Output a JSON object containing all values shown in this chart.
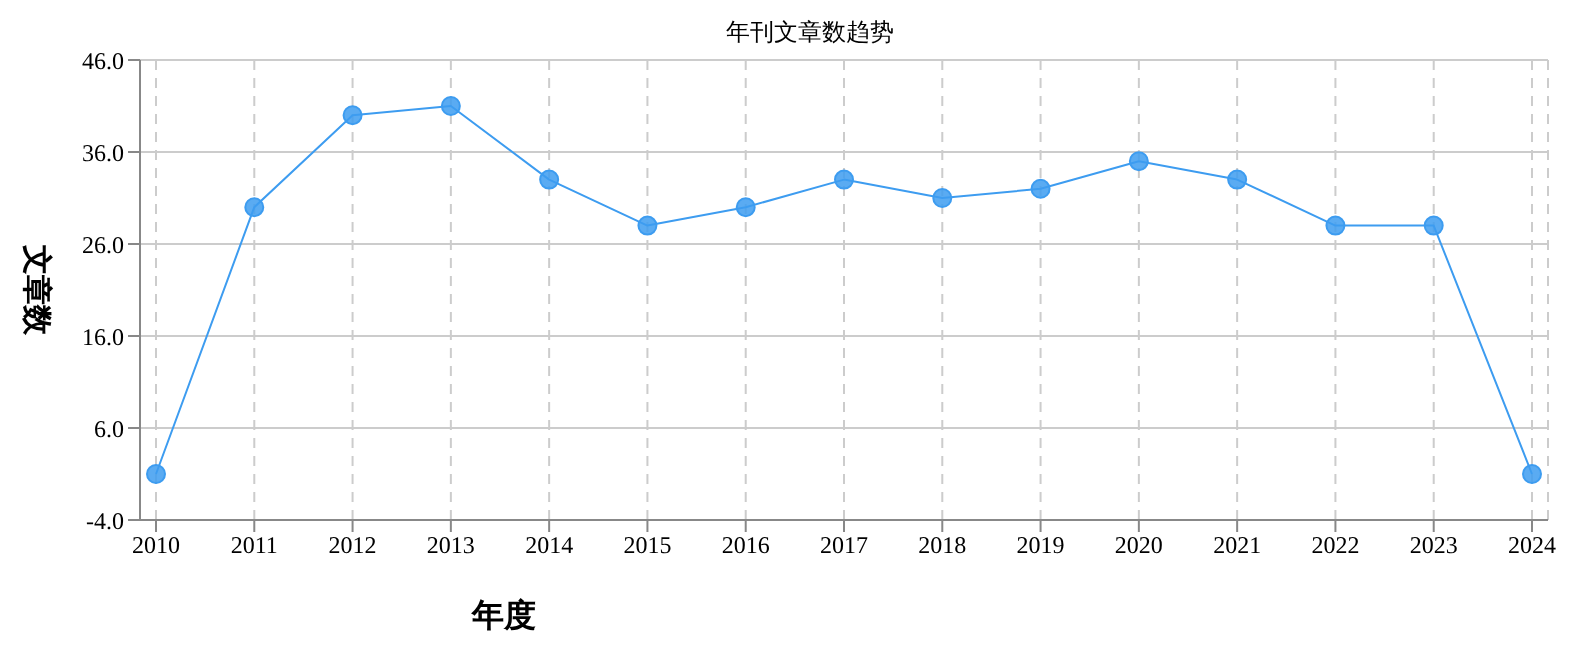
{
  "chart_data": {
    "type": "line",
    "title": "年刊文章数趋势",
    "xlabel": "年度",
    "ylabel": "文章数",
    "categories": [
      "2010",
      "2011",
      "2012",
      "2013",
      "2014",
      "2015",
      "2016",
      "2017",
      "2018",
      "2019",
      "2020",
      "2021",
      "2022",
      "2023",
      "2024"
    ],
    "series": [
      {
        "color": "#3d9cf0",
        "values": [
          1,
          30,
          40,
          41,
          33,
          28,
          30,
          33,
          31,
          32,
          35,
          33,
          28,
          28,
          1
        ]
      }
    ],
    "ylim": [
      -4,
      46
    ],
    "yticks": [
      {
        "value": -4,
        "label": "-4.0"
      },
      {
        "value": 6,
        "label": "6.0"
      },
      {
        "value": 16,
        "label": "16.0"
      },
      {
        "value": 26,
        "label": "26.0"
      },
      {
        "value": 36,
        "label": "36.0"
      },
      {
        "value": 46,
        "label": "46.0"
      }
    ],
    "grid": true,
    "marker": "circle",
    "line_style": "solid"
  }
}
